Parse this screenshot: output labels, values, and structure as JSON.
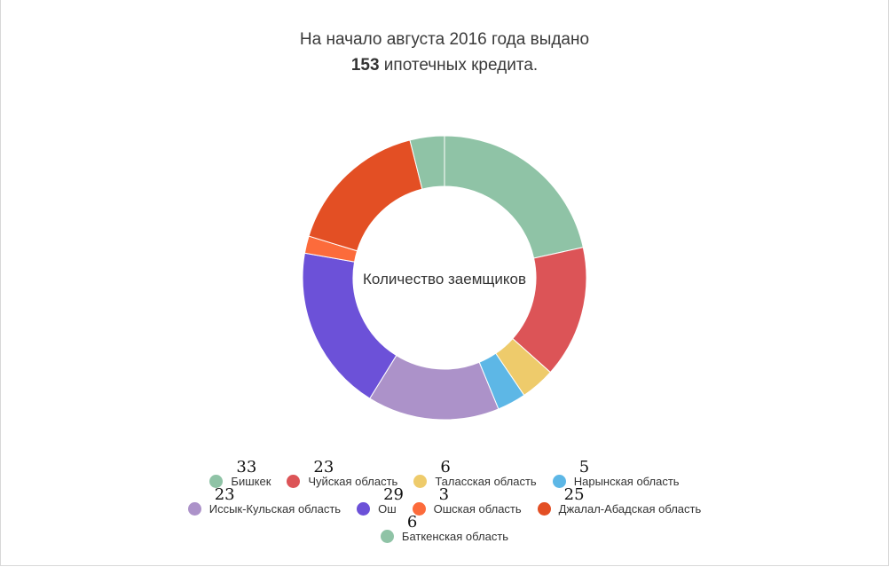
{
  "title": {
    "line1": "На начало августа 2016 года выдано",
    "count": "153",
    "line2_rest": " ипотечных кредита."
  },
  "chart_data": {
    "type": "pie",
    "donut": true,
    "center_label": "Количество заемщиков",
    "legend_position": "bottom",
    "categories": [
      "Бишкек",
      "Чуйская область",
      "Таласская область",
      "Нарынская область",
      "Иссык-Кульская область",
      "Ош",
      "Ошская область",
      "Джалал-Абадская область",
      "Баткенская область"
    ],
    "values": [
      33,
      23,
      6,
      5,
      23,
      29,
      3,
      25,
      6
    ],
    "value_labels": [
      "33",
      "23",
      "6",
      "5",
      "23",
      "29",
      "3",
      "25",
      "6"
    ],
    "colors": [
      "#8fc3a6",
      "#dc5457",
      "#eecb6b",
      "#5db7e6",
      "#ac92c9",
      "#6c51d8",
      "#fc6b3b",
      "#e34f24",
      "#8fc3a6"
    ]
  }
}
